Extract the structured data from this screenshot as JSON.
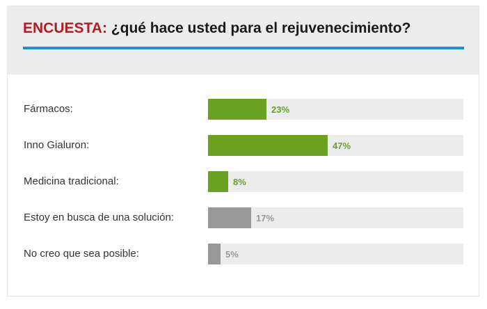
{
  "poll": {
    "title_keyword": "ENCUESTA:",
    "title_question": "¿qué hace usted para el rejuvenecimiento?",
    "colors": {
      "keyword": "#b01e23",
      "rule": "#1a8fe0",
      "primary": "#6aa121",
      "secondary": "#999999",
      "track": "#ececec"
    },
    "options": [
      {
        "label": "Fármacos:",
        "percent_label": "23%",
        "percent": 23,
        "style": "primary"
      },
      {
        "label": "Inno Gialuron:",
        "percent_label": "47%",
        "percent": 47,
        "style": "primary"
      },
      {
        "label": "Medicina tradicional:",
        "percent_label": "8%",
        "percent": 8,
        "style": "primary"
      },
      {
        "label": "Estoy en busca de una solución:",
        "percent_label": "17%",
        "percent": 17,
        "style": "secondary"
      },
      {
        "label": "No creo que sea posible:",
        "percent_label": "5%",
        "percent": 5,
        "style": "secondary"
      }
    ]
  }
}
